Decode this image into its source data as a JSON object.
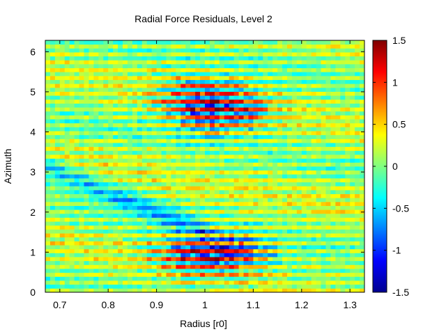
{
  "chart_data": {
    "type": "heatmap",
    "title": "Radial Force Residuals, Level 2",
    "xlabel": "Radius [r0]",
    "ylabel": "Azimuth",
    "xlim": [
      0.67,
      1.33
    ],
    "ylim": [
      0,
      6.283
    ],
    "xticks": [
      0.7,
      0.8,
      0.9,
      1,
      1.1,
      1.2,
      1.3
    ],
    "xtick_labels": [
      "0.7",
      "0.8",
      "0.9",
      "1",
      "1.1",
      "1.2",
      "1.3"
    ],
    "yticks": [
      0,
      1,
      2,
      3,
      4,
      5,
      6
    ],
    "ytick_labels": [
      "0",
      "1",
      "2",
      "3",
      "4",
      "5",
      "6"
    ],
    "colorbar": {
      "colormap": "jet",
      "clim": [
        -1.5,
        1.5
      ],
      "ticks": [
        -1.5,
        -1,
        -0.5,
        0,
        0.5,
        1,
        1.5
      ],
      "tick_labels": [
        "-1.5",
        "-1",
        "-0.5",
        "0",
        "0.5",
        "1",
        "1.5"
      ]
    },
    "grid_size": {
      "nx": 66,
      "ny": 64
    },
    "field_description": "Mostly near-zero residuals (cyan-green) with alternating positive/negative stripes in azimuth, strongest near r=1.0-1.1 at azimuth ~0.8-1.2 and ~4.3-5.0, diagonal cyan band of negative residuals from r~0.7,az~3 toward r~0.9,az~2",
    "grid": false
  }
}
